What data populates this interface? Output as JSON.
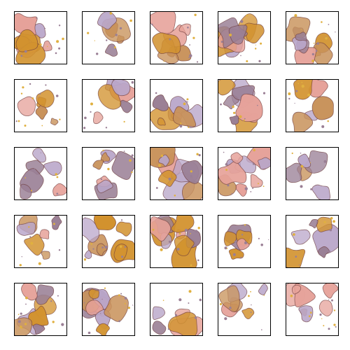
{
  "grid": {
    "rows": 5,
    "columns": 5,
    "tile_count": 25,
    "colors": {
      "background": "#ffffff",
      "border": "#000000",
      "blob_orange": "#d2922e",
      "blob_tan": "#c8925a",
      "blob_pink": "#e6a29a",
      "blob_mauve": "#9a7f95",
      "blob_lavender": "#b9a6c9",
      "blob_edge": "#6e3c3c",
      "speck_yellow": "#e0b040"
    }
  }
}
